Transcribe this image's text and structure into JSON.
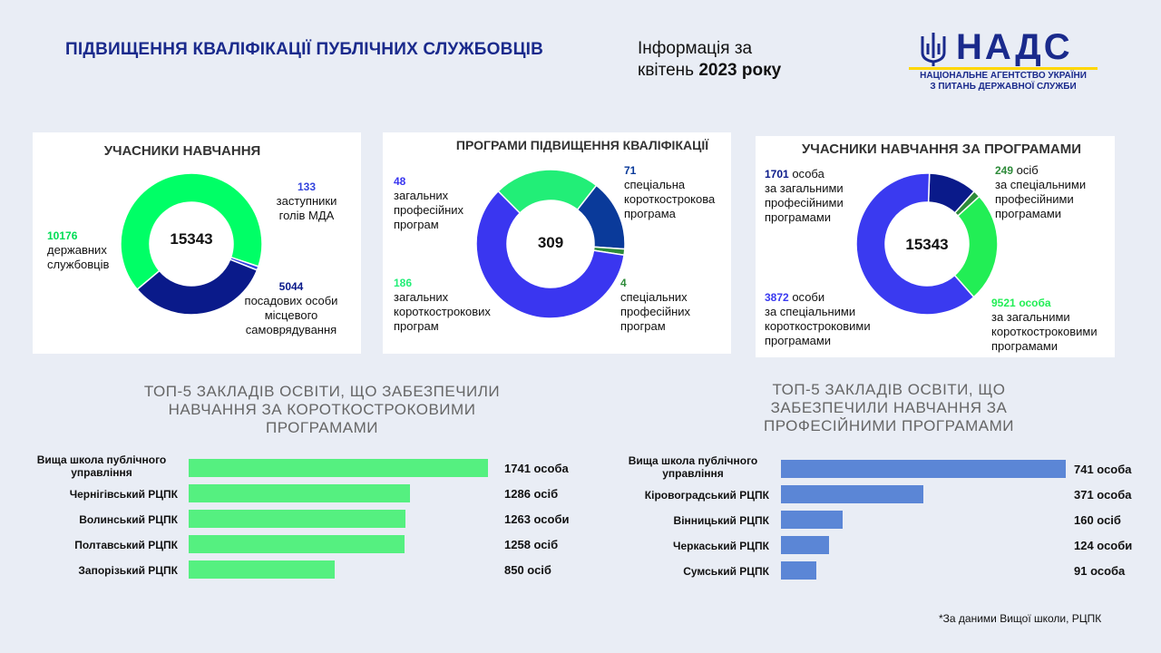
{
  "header": {
    "title": "ПІДВИЩЕННЯ КВАЛІФІКАЦІЇ ПУБЛІЧНИХ СЛУЖБОВЦІВ",
    "info_line1": "Інформація за",
    "info_line2_prefix": "квітень ",
    "info_line2_year": "2023",
    "info_line2_suffix": " року"
  },
  "logo": {
    "name": "НАДС",
    "sub1": "НАЦІОНАЛЬНЕ АГЕНТСТВО УКРАЇНИ",
    "sub2": "З ПИТАНЬ ДЕРЖАВНОЇ СЛУЖБИ",
    "color": "#1a2a8c",
    "accent": "#ffd700"
  },
  "chart_data": [
    {
      "type": "pie",
      "title": "УЧАСНИКИ НАВЧАННЯ",
      "center": "15343",
      "slices": [
        {
          "value": 10176,
          "num": "10176",
          "text": "державних службовців",
          "color": "#00ff66"
        },
        {
          "value": 133,
          "num": "133",
          "text": "заступники голів МДА",
          "color": "#3344dd"
        },
        {
          "value": 5044,
          "num": "5044",
          "text": "посадових особи місцевого самоврядування",
          "color": "#0a1a8a"
        }
      ]
    },
    {
      "type": "pie",
      "title": "ПРОГРАМИ ПІДВИЩЕННЯ КВАЛІФІКАЦІЇ",
      "center": "309",
      "slices": [
        {
          "value": 48,
          "num": "48",
          "text": "загальних професійних програм",
          "color": "#0a3a9a"
        },
        {
          "value": 4,
          "num": "4",
          "text": "спеціальних професійних програм",
          "color": "#2e8b3a"
        },
        {
          "value": 186,
          "num": "186",
          "text": "загальних короткострокових програм",
          "color": "#3a36f0"
        },
        {
          "value": 71,
          "num": "71",
          "text": "спеціальна короткострокова програма",
          "color": "#22ee77"
        }
      ]
    },
    {
      "type": "pie",
      "title": "УЧАСНИКИ НАВЧАННЯ ЗА ПРОГРАМАМИ",
      "center": "15343",
      "slices": [
        {
          "value": 1701,
          "num": "1701",
          "unit": "особа",
          "text": "за загальними професійними програмами",
          "color": "#0a1a8a"
        },
        {
          "value": 249,
          "num": "249",
          "unit": "осіб",
          "text": "за спеціальними професійними програмами",
          "color": "#2e8b3a"
        },
        {
          "value": 3872,
          "num": "3872",
          "unit": "особи",
          "text": "за спеціальними короткостроковими програмами",
          "color": "#22ee55"
        },
        {
          "value": 9521,
          "num": "9521",
          "unit": "особа",
          "text": "за загальними короткостроковими програмами",
          "color": "#3a3af0"
        }
      ]
    },
    {
      "type": "bar",
      "title": "ТОП-5 ЗАКЛАДІВ ОСВІТИ, ЩО ЗАБЕЗПЕЧИЛИ НАВЧАННЯ ЗА КОРОТКОСТРОКОВИМИ ПРОГРАМАМИ",
      "title_lines": [
        "ТОП-5 ЗАКЛАДІВ ОСВІТИ, ЩО ЗАБЕЗПЕЧИЛИ",
        "НАВЧАННЯ ЗА КОРОТКОСТРОКОВИМИ",
        "ПРОГРАМАМИ"
      ],
      "color": "#55f080",
      "categories": [
        "Вища школа публічного управління",
        "Чернігівський РЦПК",
        "Волинський РЦПК",
        "Полтавський РЦПК",
        "Запорізький РЦПК"
      ],
      "values": [
        1741,
        1286,
        1263,
        1258,
        850
      ],
      "value_labels": [
        "1741 особа",
        "1286 осіб",
        "1263 особи",
        "1258 осіб",
        "850 осіб"
      ]
    },
    {
      "type": "bar",
      "title": "ТОП-5 ЗАКЛАДІВ ОСВІТИ, ЩО ЗАБЕЗПЕЧИЛИ НАВЧАННЯ ЗА ПРОФЕСІЙНИМИ ПРОГРАМАМИ",
      "title_lines": [
        "ТОП-5 ЗАКЛАДІВ ОСВІТИ, ЩО",
        "ЗАБЕЗПЕЧИЛИ НАВЧАННЯ ЗА",
        "ПРОФЕСІЙНИМИ ПРОГРАМАМИ"
      ],
      "color": "#5b86d6",
      "categories": [
        "Вища школа публічного управління",
        "Кіровоградський РЦПК",
        "Вінницький РЦПК",
        "Черкаський РЦПК",
        "Сумський РЦПК"
      ],
      "values": [
        741,
        371,
        160,
        124,
        91
      ],
      "value_labels": [
        "741 особа",
        "371 особа",
        "160 осіб",
        "124 особи",
        "91 особа"
      ]
    }
  ],
  "footnote": "*За даними Вищої школи, РЦПК"
}
